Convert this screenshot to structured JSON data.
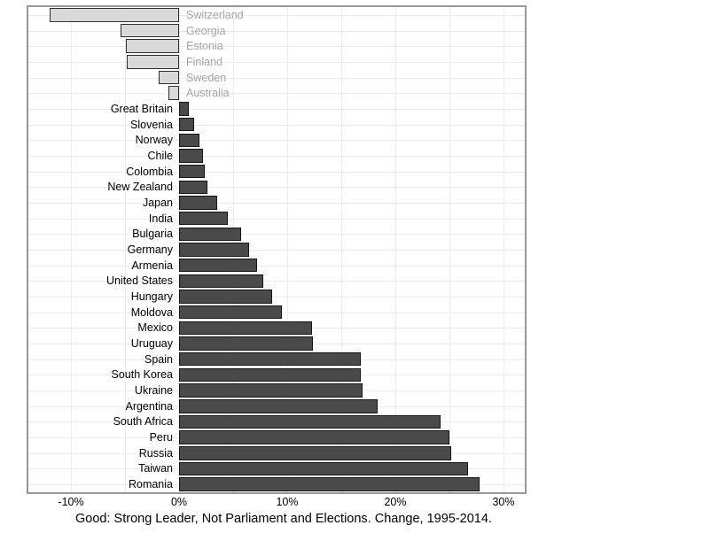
{
  "chart_data": {
    "type": "bar",
    "orientation": "horizontal",
    "title": "Good: Strong Leader, Not Parliament and Elections. Change, 1995-2014.",
    "xlabel": "",
    "ylabel": "",
    "xlim": [
      -14,
      32
    ],
    "grid": true,
    "categories": [
      "Switzerland",
      "Georgia",
      "Estonia",
      "Finland",
      "Sweden",
      "Australia",
      "Great Britain",
      "Slovenia",
      "Norway",
      "Chile",
      "Colombia",
      "New Zealand",
      "Japan",
      "India",
      "Bulgaria",
      "Germany",
      "Armenia",
      "United States",
      "Hungary",
      "Moldova",
      "Mexico",
      "Uruguay",
      "Spain",
      "South Korea",
      "Ukraine",
      "Argentina",
      "South Africa",
      "Peru",
      "Russia",
      "Taiwan",
      "Romania"
    ],
    "values": [
      -12.0,
      -5.4,
      -4.9,
      -4.8,
      -1.9,
      -1.0,
      0.9,
      1.4,
      1.9,
      2.2,
      2.4,
      2.6,
      3.5,
      4.5,
      5.7,
      6.5,
      7.2,
      7.8,
      8.6,
      9.5,
      12.3,
      12.4,
      16.8,
      16.8,
      17.0,
      18.4,
      24.2,
      25.0,
      25.2,
      26.7,
      27.8
    ],
    "x_ticks": [
      {
        "value": -10,
        "label": "-10%"
      },
      {
        "value": 0,
        "label": "0%"
      },
      {
        "value": 10,
        "label": "10%"
      },
      {
        "value": 20,
        "label": "20%"
      },
      {
        "value": 30,
        "label": "30%"
      }
    ],
    "minor_grid_values": [
      -10,
      -5,
      0,
      5,
      10,
      15,
      20,
      25,
      30
    ],
    "colors": {
      "positive_fill": "#4a4a4a",
      "positive_border": "#161616",
      "negative_fill": "#d9d9d9",
      "negative_border": "#2e2e2e",
      "positive_label": "#000000",
      "negative_label": "#a5a5a5",
      "gridline": "#ececec",
      "plot_border": "#979797",
      "background": "#ffffff"
    }
  }
}
